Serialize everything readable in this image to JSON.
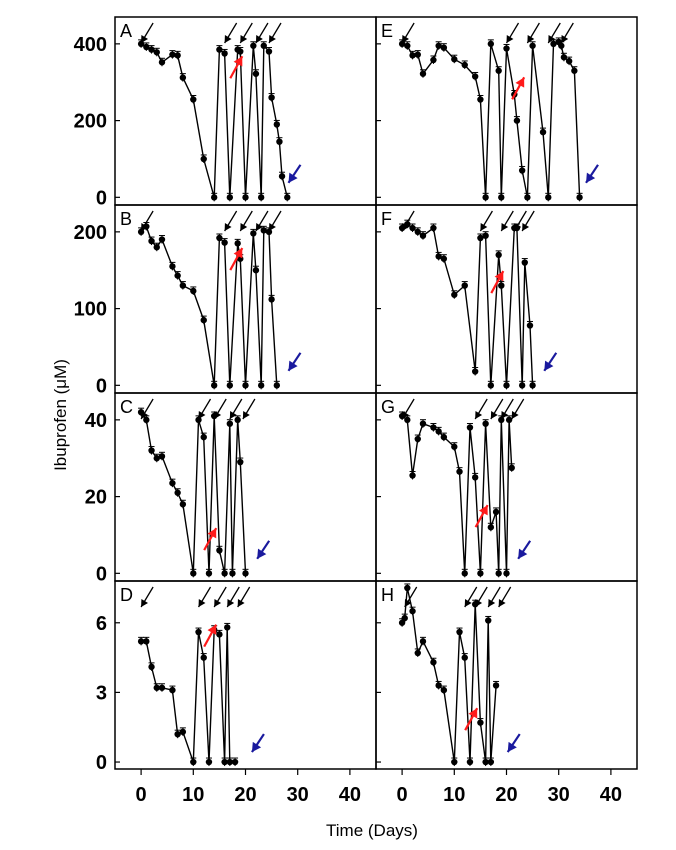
{
  "figure": {
    "ylabel": "Ibuprofen (μM)",
    "xlabel": "Time (Days)",
    "xlim": [
      -5,
      45
    ],
    "xticks": [
      0,
      10,
      20,
      30,
      40
    ],
    "colors": {
      "line": "#000000",
      "dose_arrow": "#000000",
      "red_arrow": "#ff1a1a",
      "blue_arrow": "#1a1a9e"
    }
  },
  "chart_data": [
    {
      "type": "line",
      "label": "A",
      "ylim": [
        -20,
        470
      ],
      "yticks": [
        0,
        200,
        400
      ],
      "x": [
        0,
        1,
        2,
        3,
        4,
        6,
        7,
        8,
        10,
        12,
        14,
        15,
        16,
        17,
        18.5,
        19,
        20,
        21.5,
        22,
        23,
        23.5,
        24.5,
        25,
        26,
        26.5,
        27,
        28
      ],
      "y": [
        400,
        392,
        385,
        378,
        352,
        372,
        370,
        312,
        255,
        100,
        0,
        385,
        375,
        0,
        385,
        380,
        0,
        395,
        322,
        0,
        395,
        380,
        260,
        190,
        145,
        55,
        0
      ],
      "dose_arrows_x": [
        0,
        16,
        19,
        22,
        24.5
      ],
      "red_arrow": {
        "x": 19,
        "y": 300
      },
      "blue_arrow": {
        "x": 29,
        "y": 30
      }
    },
    {
      "type": "line",
      "label": "B",
      "ylim": [
        -10,
        235
      ],
      "yticks": [
        0,
        100,
        200
      ],
      "x": [
        0,
        1,
        2,
        3,
        4,
        6,
        7,
        8,
        10,
        12,
        14,
        15,
        16,
        17,
        18.5,
        19,
        20,
        21.5,
        22,
        23,
        23.5,
        24.5,
        25,
        26
      ],
      "y": [
        200,
        207,
        188,
        180,
        190,
        155,
        143,
        130,
        123,
        85,
        0,
        192,
        186,
        0,
        185,
        165,
        0,
        198,
        150,
        0,
        202,
        200,
        112,
        0
      ],
      "dose_arrows_x": [
        0,
        16,
        19,
        22,
        24.5
      ],
      "red_arrow": {
        "x": 19,
        "y": 145
      },
      "blue_arrow": {
        "x": 29,
        "y": 15
      }
    },
    {
      "type": "line",
      "label": "C",
      "ylim": [
        -2,
        47
      ],
      "yticks": [
        0,
        20,
        40
      ],
      "x": [
        0,
        1,
        2,
        3,
        4,
        6,
        7,
        8,
        10,
        11,
        12,
        13,
        14,
        15,
        16,
        17,
        17.5,
        18.5,
        19,
        20
      ],
      "y": [
        42,
        40,
        32,
        30,
        30.5,
        23.5,
        21,
        18,
        0,
        40,
        35.5,
        0,
        41,
        6,
        0,
        39,
        0,
        40,
        29,
        0
      ],
      "dose_arrows_x": [
        0,
        11,
        14,
        17,
        19.5
      ],
      "red_arrow": {
        "x": 14,
        "y": 5
      },
      "blue_arrow": {
        "x": 23,
        "y": 3
      }
    },
    {
      "type": "line",
      "label": "D",
      "ylim": [
        -0.3,
        7.8
      ],
      "yticks": [
        0,
        3,
        6
      ],
      "x": [
        0,
        1,
        2,
        3,
        4,
        6,
        7,
        8,
        10,
        11,
        12,
        13,
        14,
        15,
        16,
        16.5,
        17,
        18
      ],
      "y": [
        5.2,
        5.2,
        4.1,
        3.2,
        3.2,
        3.1,
        1.2,
        1.3,
        0,
        5.6,
        4.5,
        0,
        5.7,
        5.5,
        0,
        5.8,
        0,
        0
      ],
      "dose_arrows_x": [
        0,
        11,
        14,
        16.5,
        18.5
      ],
      "red_arrow": {
        "x": 14,
        "y": 4.8
      },
      "blue_arrow": {
        "x": 22,
        "y": 0.3
      }
    },
    {
      "type": "line",
      "label": "E",
      "ylim": [
        -20,
        470
      ],
      "yticks": [
        0,
        200,
        400
      ],
      "x": [
        0,
        1,
        2,
        3,
        4,
        6,
        7,
        8,
        10,
        12,
        14,
        15,
        16,
        17,
        18.5,
        19,
        20,
        21.5,
        22,
        23,
        24,
        25,
        27,
        28,
        29,
        30,
        30.5,
        31,
        32,
        33,
        34
      ],
      "y": [
        400,
        395,
        370,
        372,
        322,
        358,
        395,
        390,
        360,
        345,
        315,
        255,
        0,
        400,
        330,
        0,
        388,
        268,
        200,
        70,
        0,
        395,
        170,
        0,
        400,
        405,
        395,
        365,
        355,
        330,
        0
      ],
      "dose_arrows_x": [
        0,
        20,
        24,
        28,
        30.5
      ],
      "red_arrow": {
        "x": 23,
        "y": 245
      },
      "blue_arrow": {
        "x": 36,
        "y": 30
      }
    },
    {
      "type": "line",
      "label": "F",
      "ylim": [
        -10,
        235
      ],
      "yticks": [
        0,
        100,
        200
      ],
      "x": [
        0,
        1,
        2,
        3,
        4,
        6,
        7,
        8,
        10,
        12,
        14,
        15,
        16,
        17,
        18.5,
        19,
        20,
        21.5,
        22,
        23,
        23.5,
        24.5,
        25
      ],
      "y": [
        205,
        210,
        205,
        200,
        195,
        205,
        168,
        165,
        118,
        130,
        18,
        192,
        195,
        0,
        170,
        130,
        0,
        205,
        205,
        0,
        160,
        78,
        0
      ],
      "dose_arrows_x": [
        0,
        15,
        19,
        21.5,
        23
      ],
      "red_arrow": {
        "x": 19,
        "y": 115
      },
      "blue_arrow": {
        "x": 28,
        "y": 15
      }
    },
    {
      "type": "line",
      "label": "G",
      "ylim": [
        -2,
        47
      ],
      "yticks": [
        0,
        20,
        40
      ],
      "x": [
        0,
        1,
        2,
        3,
        4,
        6,
        7,
        8,
        10,
        11,
        12,
        13,
        14,
        15,
        16,
        17,
        18,
        18.5,
        19,
        20,
        20.5,
        21
      ],
      "y": [
        41,
        40,
        25.5,
        35,
        39,
        38,
        37,
        35.5,
        33,
        26.5,
        0,
        38,
        25,
        0,
        39,
        12,
        16,
        0,
        40,
        0,
        40,
        27.5
      ],
      "dose_arrows_x": [
        0,
        14,
        17,
        19,
        21
      ],
      "red_arrow": {
        "x": 16,
        "y": 11
      },
      "blue_arrow": {
        "x": 23,
        "y": 3
      }
    },
    {
      "type": "line",
      "label": "H",
      "ylim": [
        -0.3,
        7.8
      ],
      "yticks": [
        0,
        3,
        6
      ],
      "x": [
        0,
        0.5,
        1,
        2,
        3,
        4,
        6,
        7,
        8,
        10,
        11,
        12,
        13,
        14,
        15,
        16,
        16.5,
        17,
        18
      ],
      "y": [
        6.0,
        6.2,
        7.5,
        6.5,
        4.7,
        5.2,
        4.3,
        3.3,
        3.1,
        0,
        5.6,
        4.5,
        0,
        6.8,
        1.7,
        0,
        6.1,
        0,
        3.3
      ],
      "dose_arrows_x": [
        0.5,
        12,
        14,
        16.5,
        18.5
      ],
      "red_arrow": {
        "x": 14,
        "y": 1.2
      },
      "blue_arrow": {
        "x": 21,
        "y": 0.3
      }
    }
  ]
}
